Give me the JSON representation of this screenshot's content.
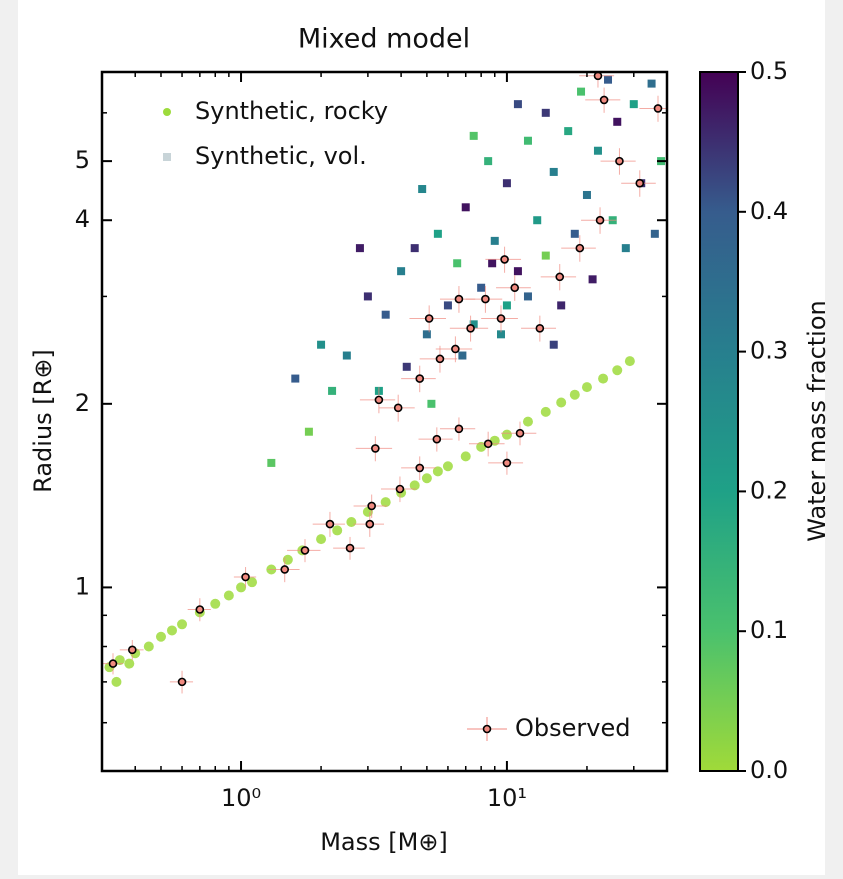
{
  "chart_data": {
    "type": "scatter",
    "title": "Mixed model",
    "x_label": "Mass [M⊕]",
    "y_label": "Radius [R⊕]",
    "xscale": "log",
    "yscale": "log",
    "xlim": [
      0.3,
      40
    ],
    "ylim": [
      0.5,
      7
    ],
    "xticks": [
      {
        "value": 1,
        "label": "10⁰"
      },
      {
        "value": 10,
        "label": "10¹"
      }
    ],
    "xminor": [
      0.4,
      0.5,
      0.6,
      0.7,
      0.8,
      0.9,
      2,
      3,
      4,
      5,
      6,
      7,
      8,
      9,
      20,
      30
    ],
    "yticks": [
      1,
      2,
      4,
      5
    ],
    "yminor": [
      0.6,
      0.7,
      0.8,
      0.9,
      3,
      6
    ],
    "legend": "upper left",
    "legend2": "lower right",
    "colorbar": {
      "label": "Water mass fraction",
      "clim": [
        0,
        0.5
      ],
      "ticks": [
        {
          "value": 0,
          "label": "0.0"
        },
        0.1,
        0.2,
        0.3,
        0.4,
        0.5
      ],
      "colormap": [
        "#a0da39",
        "#4ac16d",
        "#1fa187",
        "#277f8e",
        "#365c8d",
        "#440154"
      ]
    },
    "series": [
      {
        "name": "Synthetic, rocky",
        "marker": "circle",
        "color": "#9ddb3c",
        "x": [
          0.32,
          0.34,
          0.35,
          0.38,
          0.4,
          0.45,
          0.5,
          0.55,
          0.6,
          0.7,
          0.8,
          0.9,
          1.0,
          1.1,
          1.3,
          1.5,
          1.7,
          2.0,
          2.3,
          2.6,
          3.0,
          3.5,
          4.0,
          4.5,
          5.0,
          5.5,
          6.0,
          7.0,
          8.0,
          9.0,
          10,
          12,
          14,
          16,
          18,
          20,
          23,
          26,
          29
        ],
        "values": [
          0.74,
          0.7,
          0.76,
          0.75,
          0.78,
          0.8,
          0.83,
          0.85,
          0.87,
          0.91,
          0.94,
          0.97,
          1.0,
          1.02,
          1.07,
          1.11,
          1.15,
          1.2,
          1.24,
          1.28,
          1.33,
          1.38,
          1.43,
          1.47,
          1.51,
          1.55,
          1.58,
          1.64,
          1.7,
          1.74,
          1.78,
          1.87,
          1.94,
          2.01,
          2.07,
          2.13,
          2.2,
          2.27,
          2.35
        ]
      },
      {
        "name": "Synthetic, vol.",
        "marker": "square",
        "color": "#c8d4d8",
        "x": [
          3.0,
          3.5,
          4,
          4.5,
          5,
          5.5,
          6,
          6.5,
          7,
          7.5,
          8,
          8.5,
          9,
          10,
          10,
          11,
          12,
          12,
          13,
          14,
          14,
          15,
          16,
          17,
          18,
          19,
          20,
          21,
          22,
          24,
          25,
          26,
          28,
          30,
          32,
          35,
          38,
          2.5,
          2.8,
          2.2,
          1.8,
          1.6,
          2.0,
          3.3,
          4.2,
          5.2,
          1.3,
          6.8,
          9.5,
          11,
          15,
          7.5,
          4.8,
          36,
          8.8
        ],
        "values": [
          3.0,
          2.8,
          3.3,
          3.6,
          2.6,
          3.8,
          2.9,
          3.4,
          4.2,
          2.7,
          3.1,
          5.0,
          3.7,
          4.6,
          2.9,
          3.3,
          5.4,
          3.0,
          4.0,
          6.0,
          3.5,
          4.8,
          2.9,
          5.6,
          3.8,
          6.5,
          4.4,
          3.2,
          5.2,
          6.8,
          4.0,
          5.8,
          3.6,
          6.2,
          4.6,
          6.7,
          5.0,
          2.4,
          3.6,
          2.1,
          1.8,
          2.2,
          2.5,
          2.1,
          2.3,
          2.0,
          1.6,
          2.4,
          2.6,
          6.2,
          2.5,
          5.5,
          4.5,
          3.8,
          3.4
        ],
        "color_values": [
          0.45,
          0.4,
          0.3,
          0.45,
          0.35,
          0.2,
          0.42,
          0.1,
          0.48,
          0.25,
          0.4,
          0.15,
          0.3,
          0.45,
          0.2,
          0.48,
          0.12,
          0.38,
          0.22,
          0.44,
          0.05,
          0.3,
          0.46,
          0.18,
          0.4,
          0.1,
          0.33,
          0.47,
          0.25,
          0.4,
          0.15,
          0.48,
          0.3,
          0.2,
          0.45,
          0.35,
          0.12,
          0.3,
          0.47,
          0.15,
          0.05,
          0.4,
          0.25,
          0.2,
          0.44,
          0.1,
          0.08,
          0.36,
          0.27,
          0.42,
          0.43,
          0.09,
          0.28,
          0.38,
          0.48
        ]
      },
      {
        "name": "Observed",
        "marker": "errorbar",
        "color": "#f08a80",
        "x": [
          0.33,
          0.39,
          0.6,
          0.7,
          1.04,
          1.46,
          1.74,
          2.16,
          2.57,
          3.05,
          3.1,
          3.2,
          3.96,
          4.7,
          5.45,
          6.6,
          8.5,
          10,
          11.2,
          3.3,
          3.9,
          4.7,
          5.6,
          6.4,
          7.3,
          8.3,
          9.5,
          6.6,
          5.1,
          10.7,
          13.3,
          15.8,
          18.8,
          22.4,
          26.5,
          31.6,
          22,
          23.2,
          37,
          9.8
        ],
        "values": [
          0.75,
          0.79,
          0.7,
          0.92,
          1.04,
          1.07,
          1.15,
          1.27,
          1.16,
          1.27,
          1.36,
          1.69,
          1.45,
          1.57,
          1.75,
          1.82,
          1.72,
          1.6,
          1.79,
          2.03,
          1.97,
          2.2,
          2.37,
          2.46,
          2.66,
          2.97,
          2.76,
          2.97,
          2.76,
          3.1,
          2.66,
          3.23,
          3.6,
          4.0,
          5.0,
          4.6,
          6.9,
          6.3,
          6.1,
          3.45
        ],
        "xerr": [
          0.03,
          0.04,
          0.06,
          0.07,
          0.1,
          0.2,
          0.25,
          0.3,
          0.35,
          0.4,
          0.45,
          0.5,
          0.6,
          0.7,
          0.8,
          1.0,
          1.3,
          1.5,
          1.7,
          0.5,
          0.6,
          0.7,
          0.9,
          1.0,
          1.2,
          1.3,
          1.5,
          1.0,
          0.8,
          1.6,
          2.0,
          2.4,
          2.8,
          3.4,
          4.0,
          4.7,
          3.3,
          3.5,
          5.5,
          1.5
        ],
        "yerr": [
          0.03,
          0.03,
          0.03,
          0.04,
          0.04,
          0.05,
          0.05,
          0.06,
          0.05,
          0.06,
          0.06,
          0.08,
          0.07,
          0.07,
          0.08,
          0.08,
          0.08,
          0.07,
          0.08,
          0.1,
          0.1,
          0.11,
          0.12,
          0.12,
          0.13,
          0.15,
          0.14,
          0.15,
          0.14,
          0.15,
          0.13,
          0.16,
          0.18,
          0.2,
          0.25,
          0.23,
          0.3,
          0.3,
          0.3,
          0.17
        ]
      }
    ]
  }
}
